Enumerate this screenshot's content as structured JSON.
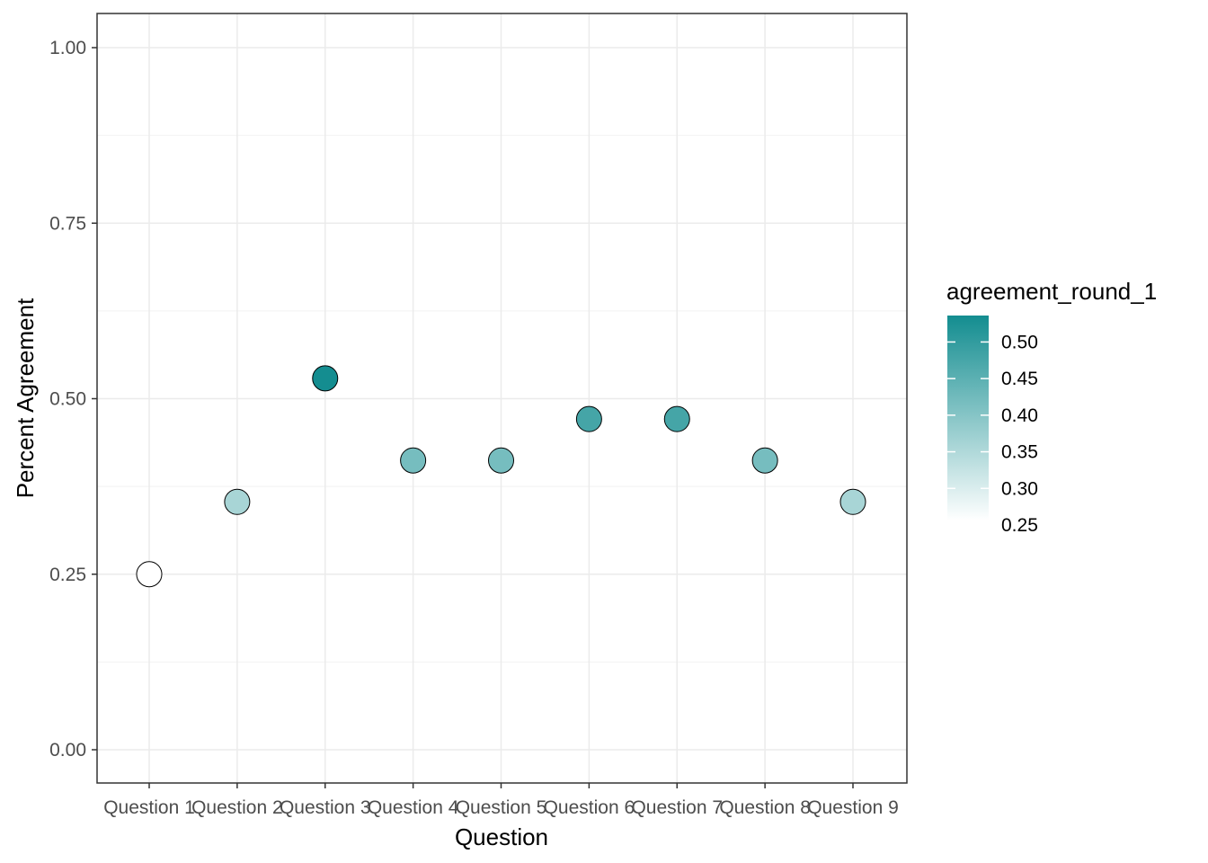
{
  "chart_data": {
    "type": "scatter",
    "title": "",
    "xlabel": "Question",
    "ylabel": "Percent Agreement",
    "categories": [
      "Question 1",
      "Question 2",
      "Question 3",
      "Question 4",
      "Question 5",
      "Question 6",
      "Question 7",
      "Question 8",
      "Question 9"
    ],
    "values": [
      0.25,
      0.353,
      0.529,
      0.412,
      0.412,
      0.471,
      0.471,
      0.412,
      0.353
    ],
    "ylim": [
      0,
      1
    ],
    "yticks": [
      "0.00",
      "0.25",
      "0.50",
      "0.75",
      "1.00"
    ],
    "grid": true,
    "legend": {
      "title": "agreement_round_1",
      "position": "right",
      "labels": [
        "0.50",
        "0.45",
        "0.40",
        "0.35",
        "0.30",
        "0.25"
      ],
      "range": [
        0.25,
        0.53
      ],
      "color_low": "#ffffff",
      "color_high": "#138d90"
    }
  }
}
